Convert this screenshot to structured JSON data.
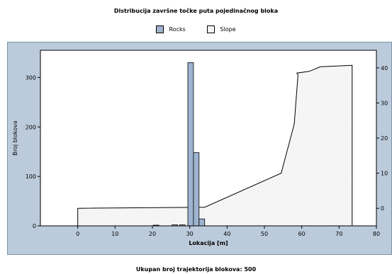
{
  "chart_data": {
    "type": "bar",
    "title": "Distribucija završne točke puta pojedinačnog bloka",
    "xlabel": "Lokacija [m]",
    "ylabel": "Broj blokova",
    "xlim": [
      -10,
      80
    ],
    "ylim": [
      0,
      355
    ],
    "y2lim": [
      -5,
      45
    ],
    "xticks": [
      0,
      10,
      20,
      30,
      40,
      50,
      60,
      70,
      80
    ],
    "yticks": [
      0,
      100,
      200,
      300
    ],
    "y2ticks": [
      0,
      10,
      20,
      30,
      40
    ],
    "y2ticklabels": [
      "0",
      "10",
      "20",
      "30",
      "40"
    ],
    "series": [
      {
        "name": "Rocks",
        "type": "bar",
        "color": "#9eb3cf",
        "bin_width": 1.5,
        "x": [
          21,
          26,
          28,
          30.25,
          31.75,
          33.25
        ],
        "values": [
          1,
          2,
          2,
          330,
          148,
          14
        ]
      },
      {
        "name": "Slope",
        "type": "area",
        "axis": "right",
        "color": "#f5f5f5",
        "x": [
          0,
          0,
          33,
          34,
          54.5,
          58,
          59,
          58.7,
          62,
          65,
          73.5,
          73.5
        ],
        "y": [
          -5,
          0,
          0.3,
          0.3,
          10,
          24,
          38,
          38.5,
          39,
          40.3,
          40.7,
          -5
        ]
      }
    ],
    "legend": [
      "Rocks",
      "Slope"
    ],
    "legend_placement": "top-center",
    "grid": false
  },
  "footer": {
    "label": "Ukupan broj trajektorija blokova:",
    "value": "500"
  }
}
